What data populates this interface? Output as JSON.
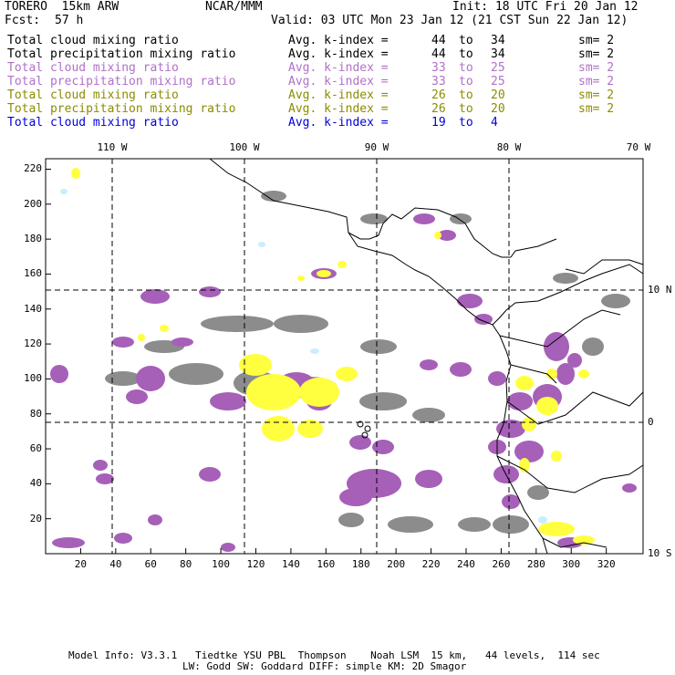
{
  "header": {
    "model": "TORERO  15km ARW",
    "org": "NCAR/MMM",
    "init": "Init: 18 UTC Fri 20 Jan 12",
    "fcst_label": "Fcst:",
    "fcst_value": "57 h",
    "valid": "Valid: 03 UTC Mon 23 Jan 12 (21 CST Sun 22 Jan 12)"
  },
  "legend": [
    {
      "field": "Total cloud mixing ratio",
      "kindex": "Avg. k-index =",
      "from": "44",
      "to_word": "to",
      "to": "34",
      "sm": "sm= 2",
      "color": "#000000"
    },
    {
      "field": "Total precipitation mixing ratio",
      "kindex": "Avg. k-index =",
      "from": "44",
      "to_word": "to",
      "to": "34",
      "sm": "sm= 2",
      "color": "#000000"
    },
    {
      "field": "Total cloud mixing ratio",
      "kindex": "Avg. k-index =",
      "from": "33",
      "to_word": "to",
      "to": "25",
      "sm": "sm= 2",
      "color": "#b070c8"
    },
    {
      "field": "Total precipitation mixing ratio",
      "kindex": "Avg. k-index =",
      "from": "33",
      "to_word": "to",
      "to": "25",
      "sm": "sm= 2",
      "color": "#b070c8"
    },
    {
      "field": "Total cloud mixing ratio",
      "kindex": "Avg. k-index =",
      "from": "26",
      "to_word": "to",
      "to": "20",
      "sm": "sm= 2",
      "color": "#8c8c00"
    },
    {
      "field": "Total precipitation mixing ratio",
      "kindex": "Avg. k-index =",
      "from": "26",
      "to_word": "to",
      "to": "20",
      "sm": "sm= 2",
      "color": "#8c8c00"
    },
    {
      "field": "Total cloud mixing ratio",
      "kindex": "Avg. k-index =",
      "from": "19",
      "to_word": "to",
      "to": "4",
      "sm": "",
      "color": "#0000dd"
    }
  ],
  "map": {
    "lon_labels": [
      "110 W",
      "100 W",
      "90 W",
      "80 W",
      "70 W"
    ],
    "lat_labels": [
      "10 N",
      "0",
      "10 S"
    ],
    "x_ticks": [
      "20",
      "40",
      "60",
      "80",
      "100",
      "120",
      "140",
      "160",
      "180",
      "200",
      "220",
      "240",
      "260",
      "280",
      "300",
      "320"
    ],
    "y_ticks": [
      "20",
      "40",
      "60",
      "80",
      "100",
      "120",
      "140",
      "160",
      "180",
      "200",
      "220"
    ],
    "colors": {
      "gray": "#8c8c8c",
      "purple": "#a660b8",
      "yellow": "#ffff40",
      "lightblue": "#c8eeff",
      "coast": "#000000"
    }
  },
  "footer": {
    "line1": "Model Info: V3.3.1   Tiedtke YSU PBL  Thompson    Noah LSM  15 km,   44 levels,  114 sec",
    "line2": "LW: Godd SW: Goddard DIFF: simple KM: 2D Smagor"
  }
}
